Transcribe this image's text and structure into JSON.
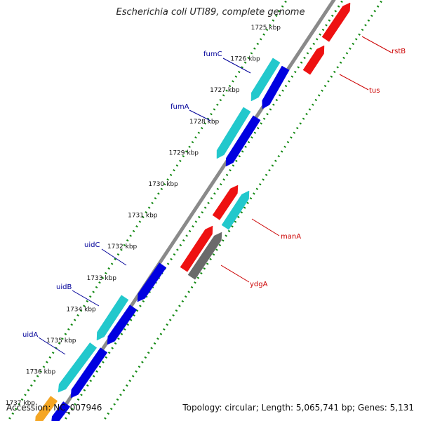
{
  "title": "Escherichia coli UTI89, complete genome",
  "footer": {
    "accession": "Accession: NC_007946",
    "topology": "Topology: circular; Length: 5,065,741 bp; Genes: 5,131"
  },
  "colors": {
    "background": "#ffffff",
    "backbone": "#8a8a8a",
    "tick": "#118811",
    "forward_gene": "#0000e0",
    "cyan_gene": "#22c8cc",
    "reverse_gene": "#ee1111",
    "gray_gene": "#6a6a6a",
    "orange_gene": "#f5a623",
    "left_label": "#000099",
    "right_label": "#cc0000"
  },
  "scale": {
    "unit": "kbp",
    "labels": [
      "1725 kbp",
      "1726 kbp",
      "1727 kbp",
      "1728 kbp",
      "1729 kbp",
      "1730 kbp",
      "1731 kbp",
      "1732 kbp",
      "1733 kbp",
      "1734 kbp",
      "1735 kbp",
      "1736 kbp",
      "1737 kbp"
    ]
  },
  "genes": [
    {
      "name": "fumC",
      "strand": "+",
      "color": "cyan_gene"
    },
    {
      "name": "fumA",
      "strand": "+",
      "color": "cyan_gene"
    },
    {
      "name": "uidC",
      "strand": "+",
      "color": "forward_gene"
    },
    {
      "name": "uidB",
      "strand": "+",
      "color": "cyan_gene"
    },
    {
      "name": "uidA",
      "strand": "+",
      "color": "cyan_gene"
    },
    {
      "name": "rstB",
      "strand": "-",
      "color": "reverse_gene"
    },
    {
      "name": "tus",
      "strand": "-",
      "color": "reverse_gene"
    },
    {
      "name": "manA",
      "strand": "-",
      "color": "cyan_gene"
    },
    {
      "name": "ydgA",
      "strand": "-",
      "color": "gray_gene"
    }
  ]
}
